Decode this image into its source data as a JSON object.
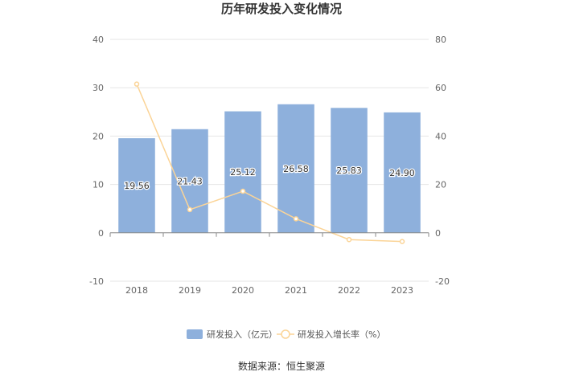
{
  "chart_data": {
    "type": "bar",
    "title": "历年研发投入变化情况",
    "categories": [
      "2018",
      "2019",
      "2020",
      "2021",
      "2022",
      "2023"
    ],
    "series": [
      {
        "name": "研发投入（亿元）",
        "type": "bar",
        "axis": "left",
        "color": "#8eb0dc",
        "values": [
          19.56,
          21.43,
          25.12,
          26.58,
          25.83,
          24.9
        ],
        "labels": [
          "19.56",
          "21.43",
          "25.12",
          "26.58",
          "25.83",
          "24.90"
        ]
      },
      {
        "name": "研发投入增长率（%）",
        "type": "line",
        "axis": "right",
        "color": "#fbd497",
        "values": [
          61.5,
          9.6,
          17.2,
          5.8,
          -2.8,
          -3.6
        ]
      }
    ],
    "y_left": {
      "min": -10,
      "max": 40,
      "ticks": [
        "-10",
        "0",
        "10",
        "20",
        "30",
        "40"
      ]
    },
    "y_right": {
      "min": -20,
      "max": 80,
      "ticks": [
        "-20",
        "0",
        "20",
        "40",
        "60",
        "80"
      ]
    },
    "grid": true,
    "legend_position": "bottom"
  },
  "source_text": "数据来源：恒生聚源"
}
